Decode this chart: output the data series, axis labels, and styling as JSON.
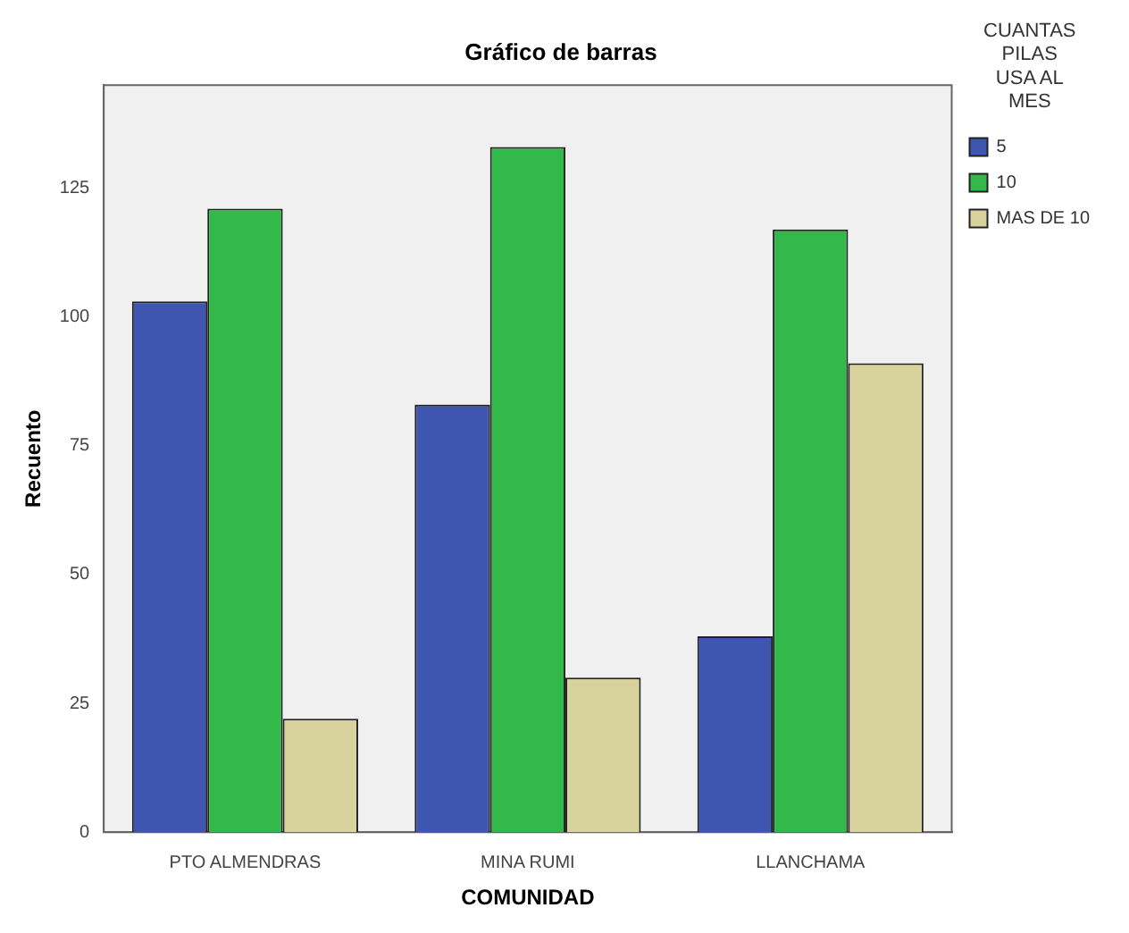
{
  "chart_data": {
    "type": "bar",
    "title": "Gráfico de barras",
    "xlabel": "COMUNIDAD",
    "ylabel": "Recuento",
    "legend_title": "CUANTAS PILAS USA AL MES",
    "categories": [
      "PTO ALMENDRAS",
      "MINA RUMI",
      "LLANCHAMA"
    ],
    "series": [
      {
        "name": "5",
        "color": "#3e56b0",
        "values": [
          103,
          83,
          38
        ]
      },
      {
        "name": "10",
        "color": "#33b84a",
        "values": [
          121,
          133,
          117
        ]
      },
      {
        "name": "MAS DE 10",
        "color": "#d8d39c",
        "values": [
          22,
          30,
          91
        ]
      }
    ],
    "ylim": [
      0,
      145
    ],
    "yticks": [
      0,
      25,
      50,
      75,
      100,
      125
    ],
    "grid": false,
    "legend": "top right"
  }
}
